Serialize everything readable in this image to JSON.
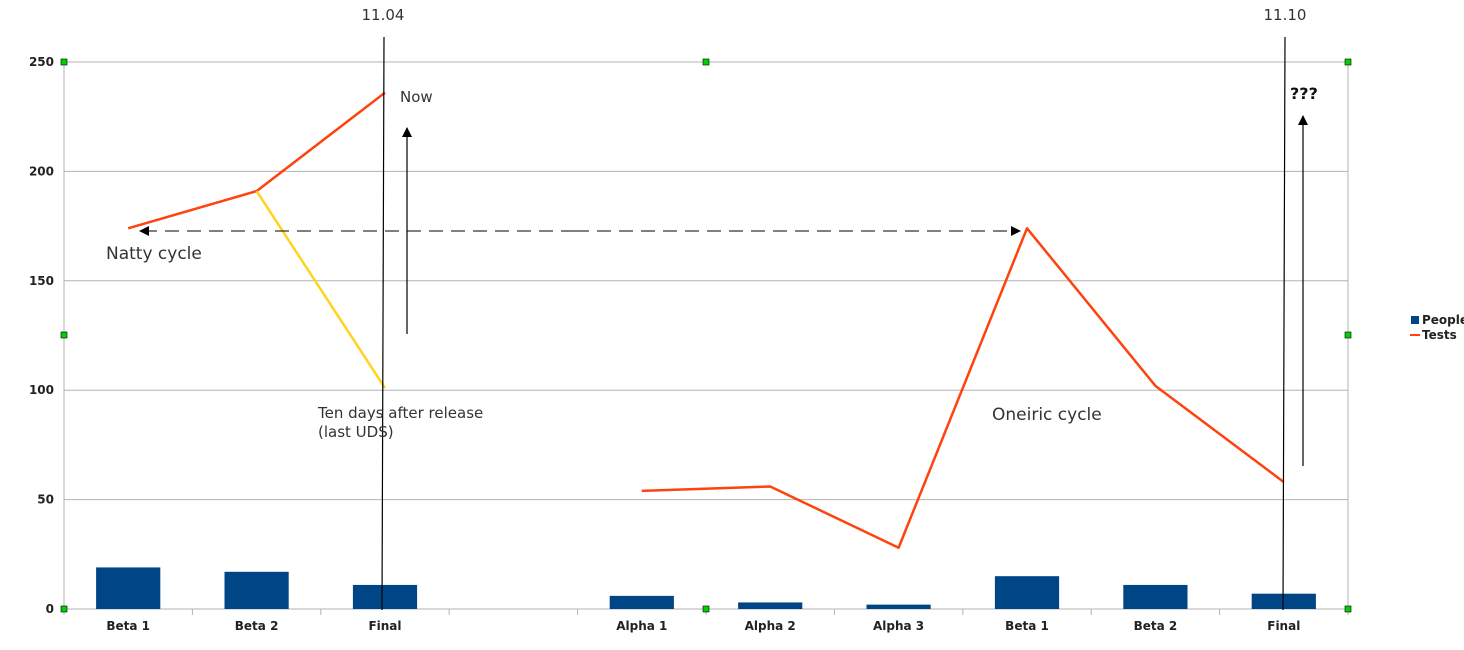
{
  "chart_data": {
    "type": "bar",
    "categories": [
      "Beta 1",
      "Beta 2",
      "Final",
      "",
      "Alpha 1",
      "Alpha 2",
      "Alpha 3",
      "Beta 1",
      "Beta 2",
      "Final"
    ],
    "ylim": [
      0,
      250
    ],
    "yticks": [
      0,
      50,
      100,
      150,
      200,
      250
    ],
    "grid": true,
    "legend_position": "right",
    "series": [
      {
        "name": "People",
        "kind": "bar",
        "color": "#004586",
        "values": [
          19,
          17,
          11,
          null,
          6,
          3,
          2,
          15,
          11,
          7
        ]
      },
      {
        "name": "Tests",
        "kind": "line",
        "color": "#ff420e",
        "values": [
          174,
          191,
          236,
          null,
          54,
          56,
          28,
          174,
          102,
          58
        ]
      }
    ],
    "extra_lines": [
      {
        "color": "#ffd320",
        "points": [
          [
            1,
            191
          ],
          [
            2,
            101
          ]
        ]
      }
    ],
    "annotations": {
      "release_a": "11.04",
      "release_b": "11.10",
      "now": "Now",
      "natty": "Natty cycle",
      "ten_days_line1": "Ten days after release",
      "ten_days_line2": "(last UDS)",
      "oneiric": "Oneiric cycle",
      "unknown": "???"
    }
  }
}
